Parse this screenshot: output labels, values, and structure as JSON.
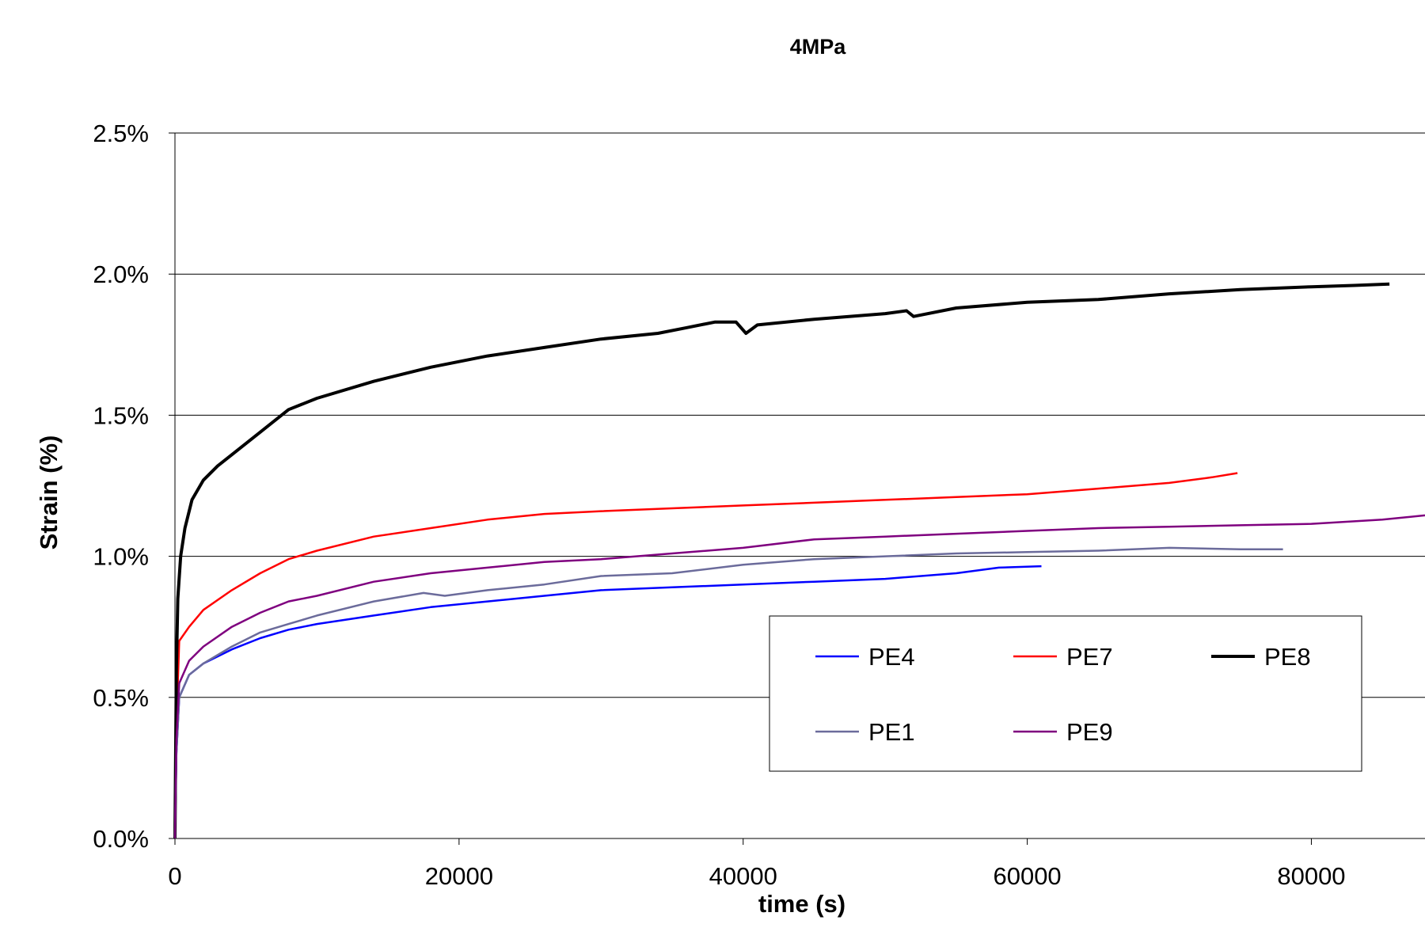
{
  "chart_data": {
    "type": "line",
    "title": "4MPa",
    "xlabel": "time (s)",
    "ylabel": "Strain (%)",
    "xlim": [
      0,
      88000
    ],
    "ylim": [
      0,
      2.5
    ],
    "x_ticks": [
      0,
      20000,
      40000,
      60000,
      80000
    ],
    "x_tick_labels": [
      "0",
      "20000",
      "40000",
      "60000",
      "80000"
    ],
    "y_ticks": [
      0,
      0.5,
      1.0,
      1.5,
      2.0,
      2.5
    ],
    "y_tick_labels": [
      "0.0%",
      "0.5%",
      "1.0%",
      "1.5%",
      "2.0%",
      "2.5%"
    ],
    "grid": "horizontal",
    "legend_position": "bottom-right",
    "series": [
      {
        "name": "PE4",
        "color": "#0000ff",
        "points": [
          [
            0,
            0
          ],
          [
            100,
            0.3
          ],
          [
            300,
            0.5
          ],
          [
            1000,
            0.58
          ],
          [
            2000,
            0.62
          ],
          [
            4000,
            0.67
          ],
          [
            6000,
            0.71
          ],
          [
            8000,
            0.74
          ],
          [
            10000,
            0.76
          ],
          [
            14000,
            0.79
          ],
          [
            18000,
            0.82
          ],
          [
            22000,
            0.84
          ],
          [
            26000,
            0.86
          ],
          [
            30000,
            0.88
          ],
          [
            35000,
            0.89
          ],
          [
            40000,
            0.9
          ],
          [
            45000,
            0.91
          ],
          [
            50000,
            0.92
          ],
          [
            55000,
            0.94
          ],
          [
            58000,
            0.96
          ],
          [
            61000,
            0.965
          ]
        ]
      },
      {
        "name": "PE7",
        "color": "#ff0000",
        "points": [
          [
            0,
            0
          ],
          [
            100,
            0.4
          ],
          [
            300,
            0.7
          ],
          [
            1000,
            0.75
          ],
          [
            2000,
            0.81
          ],
          [
            4000,
            0.88
          ],
          [
            6000,
            0.94
          ],
          [
            8000,
            0.99
          ],
          [
            10000,
            1.02
          ],
          [
            14000,
            1.07
          ],
          [
            18000,
            1.1
          ],
          [
            22000,
            1.13
          ],
          [
            26000,
            1.15
          ],
          [
            30000,
            1.16
          ],
          [
            35000,
            1.17
          ],
          [
            40000,
            1.18
          ],
          [
            45000,
            1.19
          ],
          [
            50000,
            1.2
          ],
          [
            55000,
            1.21
          ],
          [
            60000,
            1.22
          ],
          [
            65000,
            1.24
          ],
          [
            70000,
            1.26
          ],
          [
            73000,
            1.28
          ],
          [
            74800,
            1.295
          ]
        ]
      },
      {
        "name": "PE8",
        "color": "#000000",
        "points": [
          [
            0,
            0
          ],
          [
            100,
            0.6
          ],
          [
            200,
            0.85
          ],
          [
            400,
            1.0
          ],
          [
            700,
            1.1
          ],
          [
            1200,
            1.2
          ],
          [
            2000,
            1.27
          ],
          [
            3000,
            1.32
          ],
          [
            4000,
            1.36
          ],
          [
            6000,
            1.44
          ],
          [
            8000,
            1.52
          ],
          [
            10000,
            1.56
          ],
          [
            14000,
            1.62
          ],
          [
            18000,
            1.67
          ],
          [
            22000,
            1.71
          ],
          [
            26000,
            1.74
          ],
          [
            30000,
            1.77
          ],
          [
            34000,
            1.79
          ],
          [
            36000,
            1.81
          ],
          [
            38000,
            1.83
          ],
          [
            39500,
            1.83
          ],
          [
            40200,
            1.79
          ],
          [
            41000,
            1.82
          ],
          [
            45000,
            1.84
          ],
          [
            50000,
            1.86
          ],
          [
            51500,
            1.87
          ],
          [
            52000,
            1.85
          ],
          [
            55000,
            1.88
          ],
          [
            60000,
            1.9
          ],
          [
            65000,
            1.91
          ],
          [
            70000,
            1.93
          ],
          [
            75000,
            1.945
          ],
          [
            80000,
            1.955
          ],
          [
            83000,
            1.96
          ],
          [
            85500,
            1.965
          ]
        ]
      },
      {
        "name": "PE1",
        "color": "#6b6b9b",
        "points": [
          [
            0,
            0
          ],
          [
            100,
            0.3
          ],
          [
            300,
            0.5
          ],
          [
            1000,
            0.58
          ],
          [
            2000,
            0.62
          ],
          [
            4000,
            0.68
          ],
          [
            6000,
            0.73
          ],
          [
            8000,
            0.76
          ],
          [
            10000,
            0.79
          ],
          [
            14000,
            0.84
          ],
          [
            17500,
            0.87
          ],
          [
            19000,
            0.86
          ],
          [
            22000,
            0.88
          ],
          [
            26000,
            0.9
          ],
          [
            30000,
            0.93
          ],
          [
            35000,
            0.94
          ],
          [
            40000,
            0.97
          ],
          [
            45000,
            0.99
          ],
          [
            50000,
            1.0
          ],
          [
            55000,
            1.01
          ],
          [
            60000,
            1.015
          ],
          [
            65000,
            1.02
          ],
          [
            70000,
            1.03
          ],
          [
            75000,
            1.025
          ],
          [
            78000,
            1.025
          ]
        ]
      },
      {
        "name": "PE9",
        "color": "#7f007f",
        "points": [
          [
            0,
            0
          ],
          [
            100,
            0.35
          ],
          [
            300,
            0.55
          ],
          [
            1000,
            0.63
          ],
          [
            2000,
            0.68
          ],
          [
            4000,
            0.75
          ],
          [
            6000,
            0.8
          ],
          [
            8000,
            0.84
          ],
          [
            10000,
            0.86
          ],
          [
            14000,
            0.91
          ],
          [
            18000,
            0.94
          ],
          [
            22000,
            0.96
          ],
          [
            26000,
            0.98
          ],
          [
            30000,
            0.99
          ],
          [
            35000,
            1.01
          ],
          [
            40000,
            1.03
          ],
          [
            45000,
            1.06
          ],
          [
            50000,
            1.07
          ],
          [
            55000,
            1.08
          ],
          [
            60000,
            1.09
          ],
          [
            65000,
            1.1
          ],
          [
            70000,
            1.105
          ],
          [
            75000,
            1.11
          ],
          [
            80000,
            1.115
          ],
          [
            85000,
            1.13
          ],
          [
            88000,
            1.145
          ]
        ]
      }
    ]
  }
}
